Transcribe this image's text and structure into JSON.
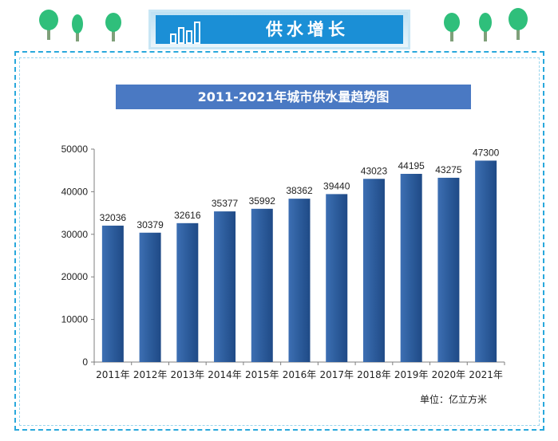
{
  "header": {
    "title": "供水增长"
  },
  "colors": {
    "accent_blue": "#1b8fd6",
    "frame_blue": "#29a8dc",
    "title_bar": "#4a79c3",
    "bar_fill": "#2e5e9e",
    "tree_green": "#2fbf7b"
  },
  "icons": [
    "tree-icon",
    "bar-chart-icon"
  ],
  "chart_data": {
    "type": "bar",
    "title": "2011-2021年城市供水量趋势图",
    "categories": [
      "2011年",
      "2012年",
      "2013年",
      "2014年",
      "2015年",
      "2016年",
      "2017年",
      "2018年",
      "2019年",
      "2020年",
      "2021年"
    ],
    "values": [
      32036,
      30379,
      32616,
      35377,
      35992,
      38362,
      39440,
      43023,
      44195,
      43275,
      47300
    ],
    "ylim": [
      0,
      50000
    ],
    "yticks": [
      0,
      10000,
      20000,
      30000,
      40000,
      50000
    ],
    "unit_label": "单位：亿立方米",
    "grid": false,
    "legend": "none"
  }
}
